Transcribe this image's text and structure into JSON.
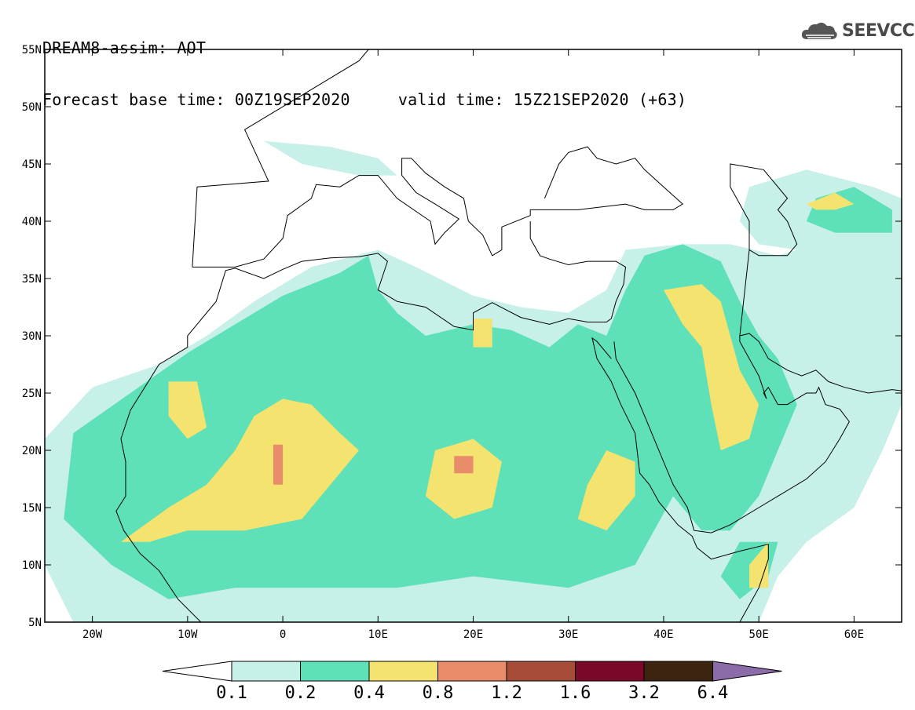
{
  "title": {
    "line1": "DREAM8-assim: AOT",
    "line2": "Forecast base time: 00Z19SEP2020     valid time: 15Z21SEP2020 (+63)"
  },
  "logo": {
    "text": "SEEVCCC",
    "icon": "cloud-icon"
  },
  "map": {
    "lon_range": [
      -25,
      65
    ],
    "lat_range": [
      5,
      55
    ],
    "lat_ticks": [
      {
        "value": 55,
        "label": "55N"
      },
      {
        "value": 50,
        "label": "50N"
      },
      {
        "value": 45,
        "label": "45N"
      },
      {
        "value": 40,
        "label": "40N"
      },
      {
        "value": 35,
        "label": "35N"
      },
      {
        "value": 30,
        "label": "30N"
      },
      {
        "value": 25,
        "label": "25N"
      },
      {
        "value": 20,
        "label": "20N"
      },
      {
        "value": 15,
        "label": "15N"
      },
      {
        "value": 10,
        "label": "10N"
      },
      {
        "value": 5,
        "label": "5N"
      }
    ],
    "lon_ticks": [
      {
        "value": -20,
        "label": "20W"
      },
      {
        "value": -10,
        "label": "10W"
      },
      {
        "value": 0,
        "label": "0"
      },
      {
        "value": 10,
        "label": "10E"
      },
      {
        "value": 20,
        "label": "20E"
      },
      {
        "value": 30,
        "label": "30E"
      },
      {
        "value": 40,
        "label": "40E"
      },
      {
        "value": 50,
        "label": "50E"
      },
      {
        "value": 60,
        "label": "60E"
      }
    ]
  },
  "colorbar": {
    "levels": [
      "0.1",
      "0.2",
      "0.4",
      "0.8",
      "1.2",
      "1.6",
      "3.2",
      "6.4"
    ],
    "colors": [
      "#ffffff",
      "#c6f0e8",
      "#5ee0b8",
      "#f4e36e",
      "#e88c6a",
      "#a84c3a",
      "#7a0828",
      "#3c2410",
      "#8c6ca8"
    ]
  },
  "aot_fields": [
    {
      "level": 0.1,
      "color": "#c6f0e8",
      "regions": [
        [
          [
            -25,
            21
          ],
          [
            -20,
            25.5
          ],
          [
            -13,
            27.5
          ],
          [
            -8,
            30
          ],
          [
            -3,
            33
          ],
          [
            3,
            36
          ],
          [
            10,
            37.5
          ],
          [
            14,
            36
          ],
          [
            20,
            33.5
          ],
          [
            25,
            32.5
          ],
          [
            30,
            32
          ],
          [
            34,
            34
          ],
          [
            36,
            37.5
          ],
          [
            42,
            38
          ],
          [
            47,
            38
          ],
          [
            52,
            37
          ],
          [
            56,
            38
          ],
          [
            60,
            38
          ],
          [
            65,
            39
          ],
          [
            65,
            24
          ],
          [
            63,
            20
          ],
          [
            60,
            15
          ],
          [
            55,
            12
          ],
          [
            52,
            9
          ],
          [
            50,
            5
          ],
          [
            -22,
            5
          ],
          [
            -25,
            10
          ]
        ],
        [
          [
            49,
            43
          ],
          [
            55,
            44.5
          ],
          [
            62,
            43
          ],
          [
            65,
            42
          ],
          [
            65,
            38
          ],
          [
            58,
            37
          ],
          [
            50,
            38
          ],
          [
            48,
            40
          ]
        ],
        [
          [
            -2,
            47
          ],
          [
            5,
            46.5
          ],
          [
            10,
            45.5
          ],
          [
            12,
            44
          ],
          [
            8,
            44
          ],
          [
            2,
            45
          ]
        ]
      ]
    },
    {
      "level": 0.2,
      "color": "#5ee0b8",
      "regions": [
        [
          [
            -22,
            21.5
          ],
          [
            -16,
            25
          ],
          [
            -10,
            28.5
          ],
          [
            -5,
            31
          ],
          [
            0,
            33.5
          ],
          [
            6,
            35.5
          ],
          [
            9,
            37
          ],
          [
            10,
            34
          ],
          [
            12,
            32
          ],
          [
            15,
            30
          ],
          [
            20,
            31
          ],
          [
            24,
            30.5
          ],
          [
            28,
            29
          ],
          [
            31,
            31
          ],
          [
            34,
            30
          ],
          [
            36,
            34
          ],
          [
            38,
            37
          ],
          [
            42,
            38
          ],
          [
            46,
            36.5
          ],
          [
            48,
            33
          ],
          [
            50,
            30
          ],
          [
            52,
            28
          ],
          [
            54,
            24
          ],
          [
            52,
            20
          ],
          [
            50,
            16
          ],
          [
            47,
            13
          ],
          [
            44,
            13
          ],
          [
            41,
            16
          ],
          [
            39,
            13
          ],
          [
            37,
            10
          ],
          [
            30,
            8
          ],
          [
            20,
            9
          ],
          [
            12,
            8
          ],
          [
            5,
            8
          ],
          [
            -5,
            8
          ],
          [
            -12,
            7
          ],
          [
            -18,
            10
          ],
          [
            -23,
            14
          ]
        ],
        [
          [
            56,
            42
          ],
          [
            60,
            43
          ],
          [
            64,
            41
          ],
          [
            64,
            39
          ],
          [
            58,
            39
          ],
          [
            55,
            40
          ]
        ],
        [
          [
            48,
            12
          ],
          [
            52,
            12
          ],
          [
            51,
            9
          ],
          [
            48,
            7
          ],
          [
            46,
            9
          ]
        ]
      ]
    },
    {
      "level": 0.4,
      "color": "#f4e36e",
      "regions": [
        [
          [
            -3,
            23
          ],
          [
            0,
            24.5
          ],
          [
            3,
            24
          ],
          [
            6,
            21.5
          ],
          [
            8,
            20
          ],
          [
            5,
            17
          ],
          [
            2,
            14
          ],
          [
            -4,
            13
          ],
          [
            -10,
            13
          ],
          [
            -14,
            12
          ],
          [
            -17,
            12
          ],
          [
            -12,
            15
          ],
          [
            -8,
            17
          ],
          [
            -5,
            20
          ]
        ],
        [
          [
            -12,
            26
          ],
          [
            -9,
            26
          ],
          [
            -8,
            22
          ],
          [
            -10,
            21
          ],
          [
            -12,
            23
          ]
        ],
        [
          [
            16,
            20
          ],
          [
            20,
            21
          ],
          [
            23,
            19
          ],
          [
            22,
            15
          ],
          [
            18,
            14
          ],
          [
            15,
            16
          ]
        ],
        [
          [
            34,
            20
          ],
          [
            37,
            19
          ],
          [
            37,
            16
          ],
          [
            34,
            13
          ],
          [
            31,
            14
          ],
          [
            32,
            17
          ]
        ],
        [
          [
            40,
            34
          ],
          [
            44,
            34.5
          ],
          [
            46,
            33
          ],
          [
            47,
            30
          ],
          [
            48,
            27
          ],
          [
            50,
            24
          ],
          [
            49,
            21
          ],
          [
            46,
            20
          ],
          [
            45,
            24
          ],
          [
            44,
            29
          ],
          [
            42,
            31
          ]
        ],
        [
          [
            49,
            10
          ],
          [
            51,
            12
          ],
          [
            51,
            8
          ],
          [
            49,
            8
          ]
        ],
        [
          [
            55,
            41.5
          ],
          [
            58,
            42.5
          ],
          [
            60,
            41.5
          ],
          [
            58,
            41
          ],
          [
            56,
            41
          ]
        ],
        [
          [
            20,
            31.5
          ],
          [
            22,
            31.5
          ],
          [
            22,
            29
          ],
          [
            20,
            29
          ]
        ]
      ]
    },
    {
      "level": 0.8,
      "color": "#e88c6a",
      "regions": [
        [
          [
            -1,
            20.5
          ],
          [
            0,
            20.5
          ],
          [
            0,
            17
          ],
          [
            -1,
            17
          ]
        ],
        [
          [
            18,
            19.5
          ],
          [
            20,
            19.5
          ],
          [
            20,
            18
          ],
          [
            18,
            18
          ]
        ]
      ]
    }
  ],
  "geo_lines": [
    [
      [
        -9.5,
        36
      ],
      [
        -9,
        43
      ],
      [
        -1.5,
        43.5
      ],
      [
        -4,
        48
      ],
      [
        -1,
        49.5
      ],
      [
        2,
        51
      ],
      [
        4,
        52
      ],
      [
        8,
        54
      ],
      [
        9,
        55
      ]
    ],
    [
      [
        -9.5,
        36
      ],
      [
        -6,
        36
      ],
      [
        -5,
        36
      ],
      [
        -2,
        36.7
      ],
      [
        0,
        38.5
      ],
      [
        0.5,
        40.5
      ],
      [
        3,
        42
      ],
      [
        3.5,
        43.2
      ],
      [
        6,
        43
      ],
      [
        8,
        44
      ],
      [
        10,
        44
      ],
      [
        12,
        42
      ],
      [
        15.5,
        40
      ],
      [
        16,
        38
      ],
      [
        17,
        39
      ],
      [
        18.5,
        40.2
      ],
      [
        16,
        41.5
      ],
      [
        14,
        42.5
      ],
      [
        12.5,
        44
      ],
      [
        12.5,
        45.5
      ],
      [
        13.5,
        45.5
      ],
      [
        15,
        44.2
      ],
      [
        17,
        43
      ],
      [
        19,
        42
      ],
      [
        19.5,
        40
      ],
      [
        21,
        38.8
      ],
      [
        22,
        37
      ],
      [
        23,
        37.5
      ],
      [
        23,
        39.5
      ],
      [
        26,
        40.5
      ],
      [
        26,
        41
      ],
      [
        29,
        41
      ],
      [
        31,
        41
      ],
      [
        36,
        41.5
      ],
      [
        38,
        41
      ],
      [
        41,
        41
      ],
      [
        42,
        41.5
      ],
      [
        40,
        43
      ],
      [
        38,
        44.5
      ],
      [
        37,
        45.5
      ],
      [
        35,
        45
      ],
      [
        33,
        45.5
      ],
      [
        32,
        46.5
      ],
      [
        30,
        46
      ],
      [
        29,
        45
      ],
      [
        28,
        43
      ],
      [
        27.5,
        42
      ]
    ],
    [
      [
        26,
        40
      ],
      [
        26,
        38.5
      ],
      [
        27,
        37
      ],
      [
        28,
        36.7
      ],
      [
        30,
        36.2
      ],
      [
        32,
        36.5
      ],
      [
        35,
        36.5
      ],
      [
        36,
        36
      ],
      [
        35.8,
        34.5
      ],
      [
        35,
        33
      ],
      [
        34.5,
        31.5
      ],
      [
        34,
        31.2
      ],
      [
        32,
        31.2
      ],
      [
        30,
        31.5
      ],
      [
        28,
        31
      ],
      [
        25,
        31.6
      ],
      [
        22,
        32.9
      ],
      [
        20,
        32
      ],
      [
        20,
        30.5
      ],
      [
        18,
        30.8
      ],
      [
        15,
        32.5
      ],
      [
        12,
        33
      ],
      [
        10,
        34
      ],
      [
        11,
        36.5
      ],
      [
        10,
        37.2
      ],
      [
        8,
        36.9
      ],
      [
        5,
        36.8
      ],
      [
        2,
        36.5
      ],
      [
        0,
        35.8
      ],
      [
        -2,
        35
      ],
      [
        -5,
        35.9
      ],
      [
        -6,
        35.7
      ],
      [
        -7,
        33
      ],
      [
        -10,
        30
      ],
      [
        -10,
        29
      ],
      [
        -13,
        27.5
      ],
      [
        -16,
        23.5
      ],
      [
        -17,
        21
      ],
      [
        -16.5,
        19
      ],
      [
        -16.5,
        16
      ],
      [
        -17.5,
        14.7
      ],
      [
        -16.7,
        13
      ],
      [
        -15,
        11
      ],
      [
        -13,
        9.5
      ],
      [
        -11,
        7
      ],
      [
        -8,
        4.5
      ]
    ],
    [
      [
        34.5,
        28
      ],
      [
        33,
        29.5
      ],
      [
        32.5,
        29.8
      ],
      [
        33,
        28
      ],
      [
        34.5,
        26
      ],
      [
        35.5,
        24
      ],
      [
        37,
        21.5
      ],
      [
        37.5,
        18
      ],
      [
        38.5,
        17
      ],
      [
        39.5,
        15.5
      ],
      [
        41.5,
        13.5
      ],
      [
        43,
        12.5
      ],
      [
        43.5,
        11.5
      ],
      [
        45,
        10.5
      ],
      [
        48,
        11.2
      ],
      [
        51,
        11.8
      ],
      [
        51,
        10.5
      ],
      [
        50,
        8
      ],
      [
        48,
        5
      ]
    ],
    [
      [
        34.8,
        29.5
      ],
      [
        35,
        28
      ],
      [
        37,
        25
      ],
      [
        38.5,
        22
      ],
      [
        39,
        21
      ],
      [
        40,
        19
      ],
      [
        41,
        17
      ],
      [
        42.5,
        15
      ],
      [
        43.2,
        13
      ],
      [
        45,
        12.8
      ],
      [
        47,
        13.5
      ],
      [
        50,
        15
      ],
      [
        52,
        16
      ],
      [
        55,
        17.5
      ],
      [
        57,
        19
      ],
      [
        58.5,
        21
      ],
      [
        59.5,
        22.5
      ],
      [
        58.5,
        23.6
      ],
      [
        57,
        24
      ],
      [
        56.3,
        25.5
      ],
      [
        56,
        25
      ],
      [
        55,
        25
      ],
      [
        53,
        24
      ],
      [
        52,
        24
      ],
      [
        51,
        25.5
      ],
      [
        50.5,
        25
      ],
      [
        50.8,
        24.5
      ],
      [
        50,
        26.5
      ],
      [
        49,
        28
      ],
      [
        48,
        29.5
      ],
      [
        48,
        30
      ],
      [
        49,
        30.2
      ],
      [
        50,
        29.5
      ],
      [
        51,
        28
      ],
      [
        53,
        27
      ],
      [
        54.5,
        26.5
      ],
      [
        56,
        27
      ],
      [
        57.3,
        26
      ],
      [
        59,
        25.5
      ],
      [
        61.5,
        25
      ],
      [
        64,
        25.3
      ],
      [
        65,
        25.2
      ]
    ],
    [
      [
        48,
        30
      ],
      [
        49,
        37.5
      ],
      [
        50,
        37
      ],
      [
        53,
        37
      ],
      [
        54,
        38
      ],
      [
        53,
        40
      ],
      [
        52,
        41
      ],
      [
        53,
        42
      ],
      [
        50.5,
        44.5
      ],
      [
        47,
        45
      ],
      [
        47,
        43
      ],
      [
        48,
        41.5
      ],
      [
        49,
        40
      ],
      [
        49,
        37.5
      ]
    ]
  ]
}
